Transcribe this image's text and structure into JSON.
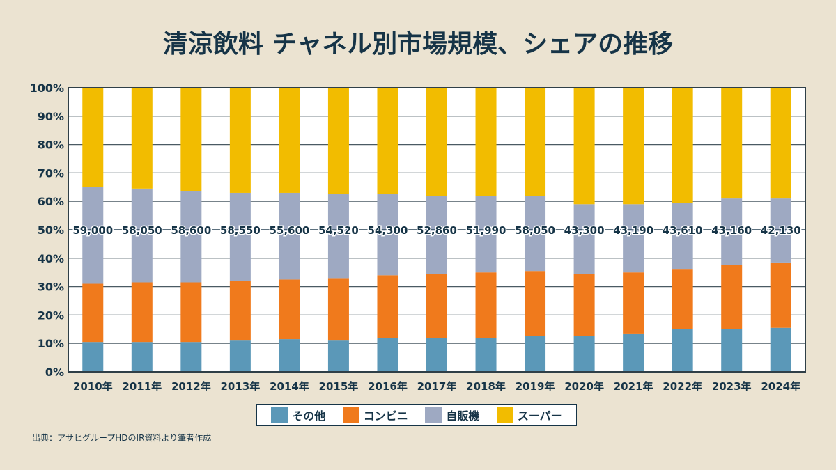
{
  "chart_data": {
    "type": "bar",
    "stacked": true,
    "normalized": true,
    "title": "清涼飲料 チャネル別市場規模、シェアの推移",
    "xlabel": "",
    "ylabel": "",
    "ylim": [
      0,
      100
    ],
    "yticks": [
      "0%",
      "10%",
      "20%",
      "30%",
      "40%",
      "50%",
      "60%",
      "70%",
      "80%",
      "90%",
      "100%"
    ],
    "grid": true,
    "legend_position": "bottom-center",
    "categories": [
      "2010年",
      "2011年",
      "2012年",
      "2013年",
      "2014年",
      "2015年",
      "2016年",
      "2017年",
      "2018年",
      "2019年",
      "2020年",
      "2021年",
      "2022年",
      "2023年",
      "2024年"
    ],
    "series": [
      {
        "name": "その他",
        "color": "#5b98b8",
        "values": [
          10.5,
          10.5,
          10.5,
          11,
          11.5,
          11,
          12,
          12,
          12,
          12.5,
          12.5,
          13.5,
          15,
          15,
          15.5
        ]
      },
      {
        "name": "コンビニ",
        "color": "#f07a1c",
        "values": [
          20.5,
          21,
          21,
          21,
          21,
          22,
          22,
          22.5,
          23,
          23,
          22,
          21.5,
          21,
          22.5,
          23
        ]
      },
      {
        "name": "自販機",
        "color": "#9ea9c2",
        "values": [
          34,
          33,
          32,
          31,
          30.5,
          29.5,
          28.5,
          27.5,
          27,
          26.5,
          24.5,
          24,
          23.5,
          23.5,
          22.5
        ]
      },
      {
        "name": "スーパー",
        "color": "#f2bc00",
        "values": [
          35,
          35.5,
          36.5,
          37,
          37,
          37.5,
          37.5,
          38,
          38,
          38,
          41,
          41,
          40.5,
          39,
          39
        ]
      }
    ],
    "market_size_labels": [
      "59,000",
      "58,050",
      "58,600",
      "58,550",
      "55,600",
      "54,520",
      "54,300",
      "52,860",
      "51,990",
      "58,050",
      "43,300",
      "43,190",
      "43,610",
      "43,160",
      "42,130"
    ],
    "market_size_label_position": "50%"
  },
  "legend": {
    "items": [
      {
        "label": "その他",
        "color": "#5b98b8"
      },
      {
        "label": "コンビニ",
        "color": "#f07a1c"
      },
      {
        "label": "自販機",
        "color": "#9ea9c2"
      },
      {
        "label": "スーパー",
        "color": "#f2bc00"
      }
    ]
  },
  "source": "出典：アサヒグループHDのIR資料より筆者作成"
}
